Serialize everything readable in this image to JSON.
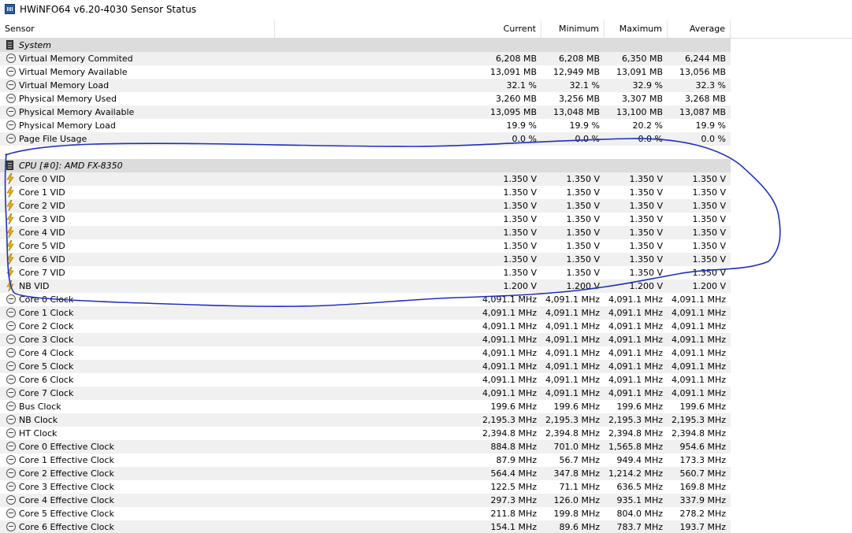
{
  "window": {
    "title": "HWiNFO64 v6.20-4030 Sensor Status"
  },
  "columns": {
    "sensor": "Sensor",
    "current": "Current",
    "minimum": "Minimum",
    "maximum": "Maximum",
    "average": "Average"
  },
  "icons": {
    "app": "hwinfo-app-icon",
    "group": "chip-icon",
    "clock": "gauge-icon",
    "volt": "lightning-icon"
  },
  "colors": {
    "annotation": "#1f2fbf",
    "group_bg": "#dcdcdc",
    "row_alt": "#f0f0f0"
  },
  "rows": [
    {
      "type": "group",
      "name": "System"
    },
    {
      "type": "sensor",
      "icon": "clock",
      "name": "Virtual Memory Commited",
      "current": "6,208 MB",
      "minimum": "6,208 MB",
      "maximum": "6,350 MB",
      "average": "6,244 MB"
    },
    {
      "type": "sensor",
      "icon": "clock",
      "name": "Virtual Memory Available",
      "current": "13,091 MB",
      "minimum": "12,949 MB",
      "maximum": "13,091 MB",
      "average": "13,056 MB"
    },
    {
      "type": "sensor",
      "icon": "clock",
      "name": "Virtual Memory Load",
      "current": "32.1 %",
      "minimum": "32.1 %",
      "maximum": "32.9 %",
      "average": "32.3 %"
    },
    {
      "type": "sensor",
      "icon": "clock",
      "name": "Physical Memory Used",
      "current": "3,260 MB",
      "minimum": "3,256 MB",
      "maximum": "3,307 MB",
      "average": "3,268 MB"
    },
    {
      "type": "sensor",
      "icon": "clock",
      "name": "Physical Memory Available",
      "current": "13,095 MB",
      "minimum": "13,048 MB",
      "maximum": "13,100 MB",
      "average": "13,087 MB"
    },
    {
      "type": "sensor",
      "icon": "clock",
      "name": "Physical Memory Load",
      "current": "19.9 %",
      "minimum": "19.9 %",
      "maximum": "20.2 %",
      "average": "19.9 %"
    },
    {
      "type": "sensor",
      "icon": "clock",
      "name": "Page File Usage",
      "current": "0.0 %",
      "minimum": "0.0 %",
      "maximum": "0.0 %",
      "average": "0.0 %"
    },
    {
      "type": "blank"
    },
    {
      "type": "group",
      "name": "CPU [#0]: AMD FX-8350"
    },
    {
      "type": "sensor",
      "icon": "volt",
      "name": "Core 0 VID",
      "current": "1.350 V",
      "minimum": "1.350 V",
      "maximum": "1.350 V",
      "average": "1.350 V"
    },
    {
      "type": "sensor",
      "icon": "volt",
      "name": "Core 1 VID",
      "current": "1.350 V",
      "minimum": "1.350 V",
      "maximum": "1.350 V",
      "average": "1.350 V"
    },
    {
      "type": "sensor",
      "icon": "volt",
      "name": "Core 2 VID",
      "current": "1.350 V",
      "minimum": "1.350 V",
      "maximum": "1.350 V",
      "average": "1.350 V"
    },
    {
      "type": "sensor",
      "icon": "volt",
      "name": "Core 3 VID",
      "current": "1.350 V",
      "minimum": "1.350 V",
      "maximum": "1.350 V",
      "average": "1.350 V"
    },
    {
      "type": "sensor",
      "icon": "volt",
      "name": "Core 4 VID",
      "current": "1.350 V",
      "minimum": "1.350 V",
      "maximum": "1.350 V",
      "average": "1.350 V"
    },
    {
      "type": "sensor",
      "icon": "volt",
      "name": "Core 5 VID",
      "current": "1.350 V",
      "minimum": "1.350 V",
      "maximum": "1.350 V",
      "average": "1.350 V"
    },
    {
      "type": "sensor",
      "icon": "volt",
      "name": "Core 6 VID",
      "current": "1.350 V",
      "minimum": "1.350 V",
      "maximum": "1.350 V",
      "average": "1.350 V"
    },
    {
      "type": "sensor",
      "icon": "volt",
      "name": "Core 7 VID",
      "current": "1.350 V",
      "minimum": "1.350 V",
      "maximum": "1.350 V",
      "average": "1.350 V"
    },
    {
      "type": "sensor",
      "icon": "volt",
      "name": "NB VID",
      "current": "1.200 V",
      "minimum": "1.200 V",
      "maximum": "1.200 V",
      "average": "1.200 V"
    },
    {
      "type": "sensor",
      "icon": "clock",
      "name": "Core 0 Clock",
      "current": "4,091.1 MHz",
      "minimum": "4,091.1 MHz",
      "maximum": "4,091.1 MHz",
      "average": "4,091.1 MHz"
    },
    {
      "type": "sensor",
      "icon": "clock",
      "name": "Core 1 Clock",
      "current": "4,091.1 MHz",
      "minimum": "4,091.1 MHz",
      "maximum": "4,091.1 MHz",
      "average": "4,091.1 MHz"
    },
    {
      "type": "sensor",
      "icon": "clock",
      "name": "Core 2 Clock",
      "current": "4,091.1 MHz",
      "minimum": "4,091.1 MHz",
      "maximum": "4,091.1 MHz",
      "average": "4,091.1 MHz"
    },
    {
      "type": "sensor",
      "icon": "clock",
      "name": "Core 3 Clock",
      "current": "4,091.1 MHz",
      "minimum": "4,091.1 MHz",
      "maximum": "4,091.1 MHz",
      "average": "4,091.1 MHz"
    },
    {
      "type": "sensor",
      "icon": "clock",
      "name": "Core 4 Clock",
      "current": "4,091.1 MHz",
      "minimum": "4,091.1 MHz",
      "maximum": "4,091.1 MHz",
      "average": "4,091.1 MHz"
    },
    {
      "type": "sensor",
      "icon": "clock",
      "name": "Core 5 Clock",
      "current": "4,091.1 MHz",
      "minimum": "4,091.1 MHz",
      "maximum": "4,091.1 MHz",
      "average": "4,091.1 MHz"
    },
    {
      "type": "sensor",
      "icon": "clock",
      "name": "Core 6 Clock",
      "current": "4,091.1 MHz",
      "minimum": "4,091.1 MHz",
      "maximum": "4,091.1 MHz",
      "average": "4,091.1 MHz"
    },
    {
      "type": "sensor",
      "icon": "clock",
      "name": "Core 7 Clock",
      "current": "4,091.1 MHz",
      "minimum": "4,091.1 MHz",
      "maximum": "4,091.1 MHz",
      "average": "4,091.1 MHz"
    },
    {
      "type": "sensor",
      "icon": "clock",
      "name": "Bus Clock",
      "current": "199.6 MHz",
      "minimum": "199.6 MHz",
      "maximum": "199.6 MHz",
      "average": "199.6 MHz"
    },
    {
      "type": "sensor",
      "icon": "clock",
      "name": "NB Clock",
      "current": "2,195.3 MHz",
      "minimum": "2,195.3 MHz",
      "maximum": "2,195.3 MHz",
      "average": "2,195.3 MHz"
    },
    {
      "type": "sensor",
      "icon": "clock",
      "name": "HT Clock",
      "current": "2,394.8 MHz",
      "minimum": "2,394.8 MHz",
      "maximum": "2,394.8 MHz",
      "average": "2,394.8 MHz"
    },
    {
      "type": "sensor",
      "icon": "clock",
      "name": "Core 0 Effective Clock",
      "current": "884.8 MHz",
      "minimum": "701.0 MHz",
      "maximum": "1,565.8 MHz",
      "average": "954.6 MHz"
    },
    {
      "type": "sensor",
      "icon": "clock",
      "name": "Core 1 Effective Clock",
      "current": "87.9 MHz",
      "minimum": "56.7 MHz",
      "maximum": "949.4 MHz",
      "average": "173.3 MHz"
    },
    {
      "type": "sensor",
      "icon": "clock",
      "name": "Core 2 Effective Clock",
      "current": "564.4 MHz",
      "minimum": "347.8 MHz",
      "maximum": "1,214.2 MHz",
      "average": "560.7 MHz"
    },
    {
      "type": "sensor",
      "icon": "clock",
      "name": "Core 3 Effective Clock",
      "current": "122.5 MHz",
      "minimum": "71.1 MHz",
      "maximum": "636.5 MHz",
      "average": "169.8 MHz"
    },
    {
      "type": "sensor",
      "icon": "clock",
      "name": "Core 4 Effective Clock",
      "current": "297.3 MHz",
      "minimum": "126.0 MHz",
      "maximum": "935.1 MHz",
      "average": "337.9 MHz"
    },
    {
      "type": "sensor",
      "icon": "clock",
      "name": "Core 5 Effective Clock",
      "current": "211.8 MHz",
      "minimum": "199.8 MHz",
      "maximum": "804.0 MHz",
      "average": "278.2 MHz"
    },
    {
      "type": "sensor",
      "icon": "clock",
      "name": "Core 6 Effective Clock",
      "current": "154.1 MHz",
      "minimum": "89.6 MHz",
      "maximum": "783.7 MHz",
      "average": "193.7 MHz"
    }
  ]
}
